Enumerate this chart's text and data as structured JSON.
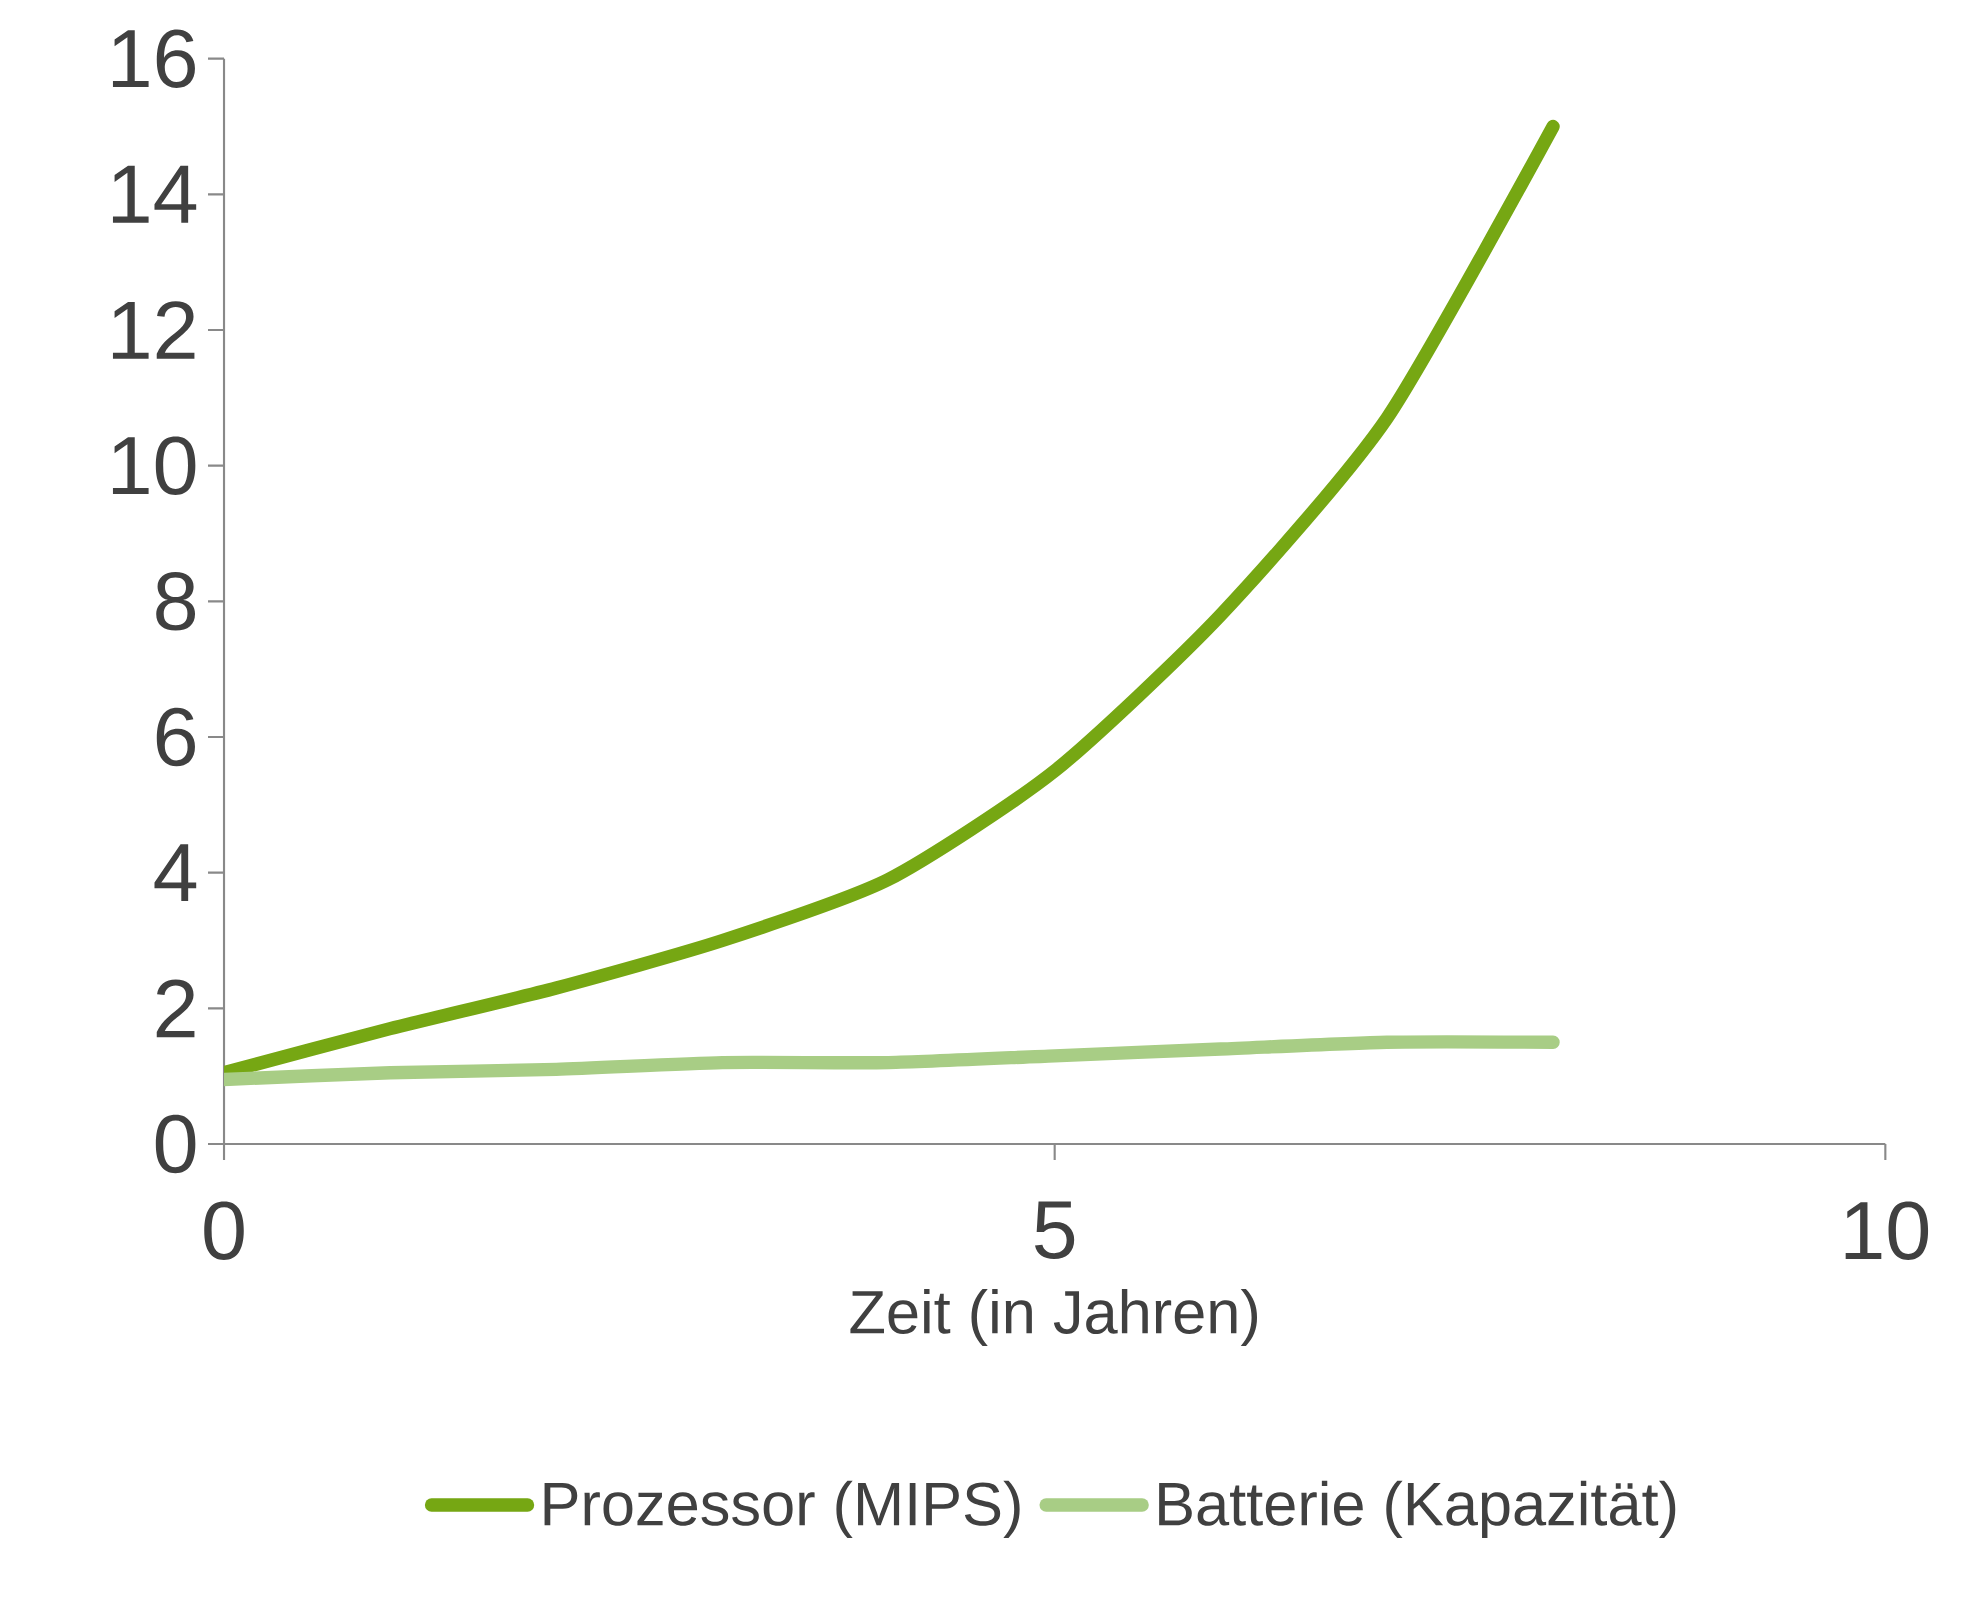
{
  "chart_data": {
    "type": "line",
    "xlabel": "Zeit (in Jahren)",
    "x": [
      0,
      1,
      2,
      3,
      4,
      5,
      6,
      7,
      8
    ],
    "series": [
      {
        "name": "Prozessor (MIPS)",
        "color": "#76a713",
        "values": [
          1.05,
          1.7,
          2.3,
          3.0,
          3.9,
          5.5,
          7.8,
          10.7,
          15.0
        ]
      },
      {
        "name": "Batterie (Kapazität)",
        "color": "#a8cd85",
        "values": [
          0.95,
          1.05,
          1.1,
          1.2,
          1.2,
          1.3,
          1.4,
          1.5,
          1.5
        ]
      }
    ],
    "xlim": [
      0,
      10
    ],
    "xticks": [
      0,
      5,
      10
    ],
    "ylim": [
      0,
      16
    ],
    "yticks": [
      0,
      2,
      4,
      6,
      8,
      10,
      12,
      14,
      16
    ],
    "grid": false,
    "legend": "bottom",
    "marker": "none",
    "line_style": "solid"
  }
}
